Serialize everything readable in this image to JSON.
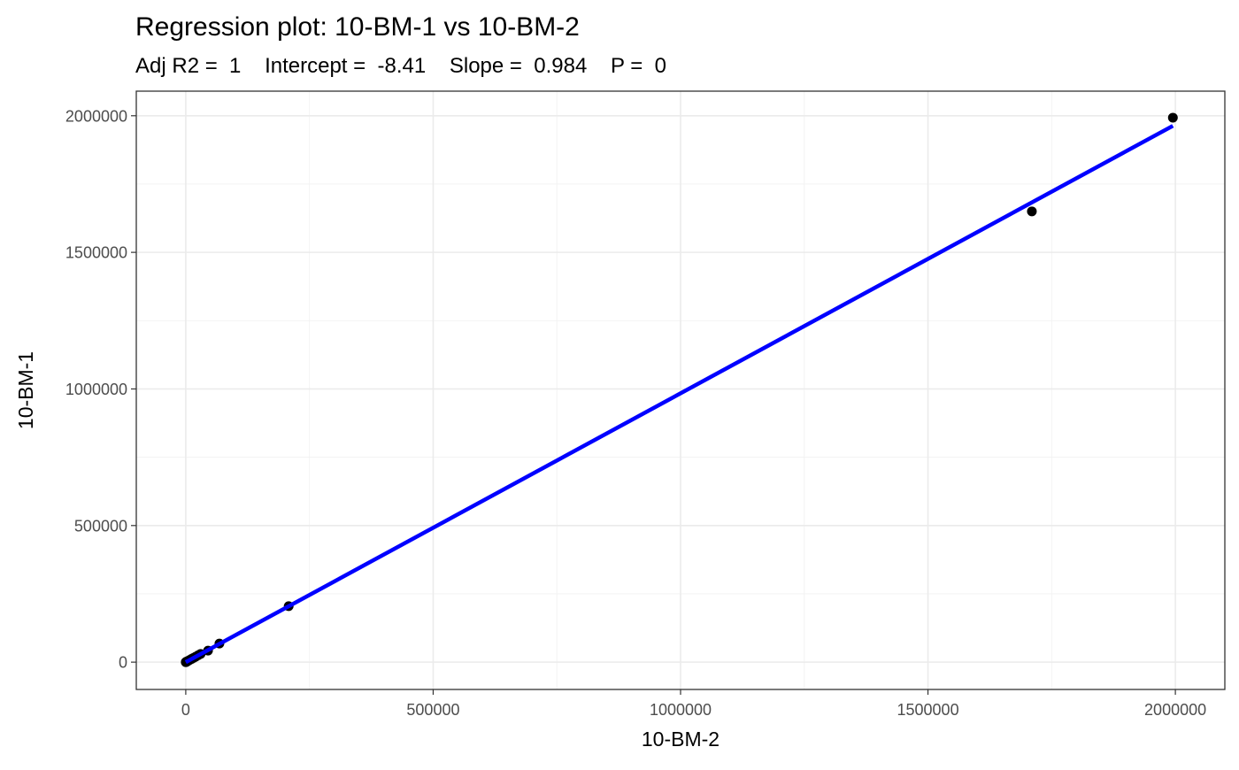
{
  "chart_data": {
    "type": "scatter",
    "title": "Regression plot: 10-BM-1 vs 10-BM-2",
    "subtitle": "Adj R2 =  1    Intercept =  -8.41    Slope =  0.984    P =  0",
    "xlabel": "10-BM-2",
    "ylabel": "10-BM-1",
    "xlim": [
      -100000,
      2100000
    ],
    "ylim": [
      -100000,
      2090000
    ],
    "x_ticks": [
      0,
      500000,
      1000000,
      1500000,
      2000000
    ],
    "x_tick_labels": [
      "0",
      "500000",
      "1000000",
      "1500000",
      "2000000"
    ],
    "y_ticks": [
      0,
      500000,
      1000000,
      1500000,
      2000000
    ],
    "y_tick_labels": [
      "0",
      "500000",
      "1000000",
      "1500000",
      "2000000"
    ],
    "grid": true,
    "points": {
      "x": [
        0,
        200,
        500,
        800,
        1200,
        2000,
        3000,
        5000,
        8000,
        12000,
        16000,
        20000,
        25000,
        30000,
        45000,
        68000,
        208000,
        1710000,
        1995000
      ],
      "y": [
        0,
        200,
        500,
        800,
        1200,
        2000,
        3000,
        5000,
        8000,
        12000,
        16000,
        20000,
        25000,
        30000,
        42000,
        68000,
        205000,
        1650000,
        1993000
      ],
      "color": "#000000"
    },
    "regression": {
      "intercept": -8.41,
      "slope": 0.984,
      "x_range": [
        0,
        1995000
      ],
      "color": "#0000ff"
    }
  }
}
